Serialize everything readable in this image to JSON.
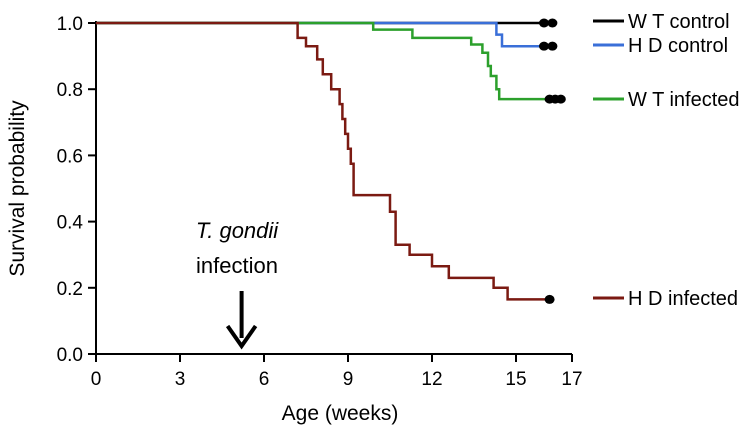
{
  "chart_data": {
    "type": "line",
    "style": "step",
    "title": "",
    "xlabel": "Age (weeks)",
    "ylabel": "Survival probability",
    "xlim": [
      0,
      17
    ],
    "ylim": [
      0,
      1
    ],
    "xticks": [
      0,
      3,
      6,
      9,
      12,
      15,
      17
    ],
    "yticks": [
      0.0,
      0.2,
      0.4,
      0.6,
      0.8,
      1.0
    ],
    "ytick_labels": [
      "0.0",
      "0.2",
      "0.4",
      "0.6",
      "0.8",
      "1.0"
    ],
    "grid": false,
    "legend": "right",
    "series": [
      {
        "name": "W T control",
        "color": "#000000",
        "points": [
          [
            0,
            1.0
          ],
          [
            16.2,
            1.0
          ]
        ],
        "censored": [
          [
            16.0,
            1.0
          ],
          [
            16.3,
            1.0
          ]
        ]
      },
      {
        "name": "H D control",
        "color": "#3a6fd8",
        "points": [
          [
            0,
            1.0
          ],
          [
            14.3,
            1.0
          ],
          [
            14.3,
            0.965
          ],
          [
            14.5,
            0.965
          ],
          [
            14.5,
            0.93
          ],
          [
            16.2,
            0.93
          ]
        ],
        "censored": [
          [
            16.0,
            0.93
          ],
          [
            16.3,
            0.93
          ]
        ]
      },
      {
        "name": "W T infected",
        "color": "#2ca02c",
        "points": [
          [
            0,
            1.0
          ],
          [
            9.9,
            1.0
          ],
          [
            9.9,
            0.98
          ],
          [
            11.3,
            0.98
          ],
          [
            11.3,
            0.955
          ],
          [
            13.4,
            0.955
          ],
          [
            13.4,
            0.935
          ],
          [
            13.8,
            0.935
          ],
          [
            13.8,
            0.91
          ],
          [
            14.0,
            0.91
          ],
          [
            14.0,
            0.87
          ],
          [
            14.1,
            0.87
          ],
          [
            14.1,
            0.84
          ],
          [
            14.3,
            0.84
          ],
          [
            14.3,
            0.8
          ],
          [
            14.4,
            0.8
          ],
          [
            14.4,
            0.77
          ],
          [
            16.3,
            0.77
          ]
        ],
        "censored": [
          [
            16.2,
            0.77
          ],
          [
            16.4,
            0.77
          ],
          [
            16.6,
            0.77
          ]
        ]
      },
      {
        "name": "H D infected",
        "color": "#7b1a12",
        "points": [
          [
            0,
            1.0
          ],
          [
            7.2,
            1.0
          ],
          [
            7.2,
            0.955
          ],
          [
            7.5,
            0.955
          ],
          [
            7.5,
            0.93
          ],
          [
            7.9,
            0.93
          ],
          [
            7.9,
            0.89
          ],
          [
            8.1,
            0.89
          ],
          [
            8.1,
            0.845
          ],
          [
            8.4,
            0.845
          ],
          [
            8.4,
            0.8
          ],
          [
            8.7,
            0.8
          ],
          [
            8.7,
            0.755
          ],
          [
            8.8,
            0.755
          ],
          [
            8.8,
            0.71
          ],
          [
            8.9,
            0.71
          ],
          [
            8.9,
            0.665
          ],
          [
            9.0,
            0.665
          ],
          [
            9.0,
            0.62
          ],
          [
            9.1,
            0.62
          ],
          [
            9.1,
            0.575
          ],
          [
            9.2,
            0.575
          ],
          [
            9.2,
            0.48
          ],
          [
            10.5,
            0.48
          ],
          [
            10.5,
            0.43
          ],
          [
            10.7,
            0.43
          ],
          [
            10.7,
            0.33
          ],
          [
            11.2,
            0.33
          ],
          [
            11.2,
            0.3
          ],
          [
            12.0,
            0.3
          ],
          [
            12.0,
            0.265
          ],
          [
            12.6,
            0.265
          ],
          [
            12.6,
            0.23
          ],
          [
            14.2,
            0.23
          ],
          [
            14.2,
            0.2
          ],
          [
            14.7,
            0.2
          ],
          [
            14.7,
            0.165
          ],
          [
            16.2,
            0.165
          ]
        ],
        "censored": [
          [
            16.2,
            0.165
          ]
        ]
      }
    ],
    "annotation": {
      "line1": "T. gondii",
      "line2": "infection",
      "arrow_x": 5.2
    }
  }
}
